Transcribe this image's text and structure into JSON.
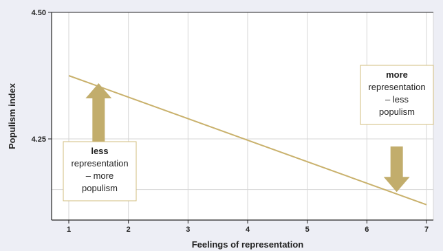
{
  "chart_data": {
    "type": "line",
    "xlabel": "Feelings of representation",
    "ylabel": "Populism index",
    "xlim": [
      1,
      7
    ],
    "ylim": [
      4.1,
      4.5
    ],
    "x_ticks": [
      "1",
      "2",
      "3",
      "4",
      "5",
      "6",
      "7"
    ],
    "y_ticks": [
      "4.50",
      "4.25"
    ],
    "grid": true,
    "colors": {
      "line": "#c9b16c",
      "arrow": "#c2ad6c",
      "box_border": "#d2bc7c",
      "plot_bg": "#ffffff",
      "page_bg": "#edeef5"
    },
    "series": [
      {
        "x": [
          1,
          7
        ],
        "y": [
          4.375,
          4.12
        ]
      }
    ],
    "annotations": [
      {
        "id": "less-box",
        "lines": [
          "less",
          "representation",
          "– more",
          "populism"
        ],
        "bold_line": 0,
        "arrow": "up",
        "arrow_x": 1.5,
        "arrow_y_from": 4.21,
        "arrow_y_to": 4.36
      },
      {
        "id": "more-box",
        "lines": [
          "more",
          "representation",
          "– less",
          "populism"
        ],
        "bold_line": 0,
        "arrow": "down",
        "arrow_x": 6.5,
        "arrow_y_from": 4.235,
        "arrow_y_to": 4.145
      }
    ]
  }
}
